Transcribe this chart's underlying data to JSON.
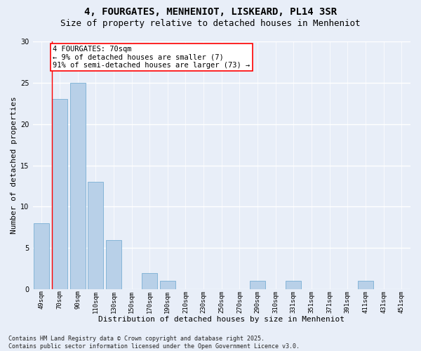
{
  "title_line1": "4, FOURGATES, MENHENIOT, LISKEARD, PL14 3SR",
  "title_line2": "Size of property relative to detached houses in Menheniot",
  "xlabel": "Distribution of detached houses by size in Menheniot",
  "ylabel": "Number of detached properties",
  "categories": [
    "49sqm",
    "70sqm",
    "90sqm",
    "110sqm",
    "130sqm",
    "150sqm",
    "170sqm",
    "190sqm",
    "210sqm",
    "230sqm",
    "250sqm",
    "270sqm",
    "290sqm",
    "310sqm",
    "331sqm",
    "351sqm",
    "371sqm",
    "391sqm",
    "411sqm",
    "431sqm",
    "451sqm"
  ],
  "values": [
    8,
    23,
    25,
    13,
    6,
    0,
    2,
    1,
    0,
    0,
    0,
    0,
    1,
    0,
    1,
    0,
    0,
    0,
    1,
    0,
    0
  ],
  "bar_color": "#b8d0e8",
  "bar_edge_color": "#7aafd4",
  "red_line_index": 1,
  "annotation_text": "4 FOURGATES: 70sqm\n← 9% of detached houses are smaller (7)\n91% of semi-detached houses are larger (73) →",
  "annotation_box_color": "white",
  "annotation_box_edge_color": "red",
  "ylim": [
    0,
    30
  ],
  "yticks": [
    0,
    5,
    10,
    15,
    20,
    25,
    30
  ],
  "footer_text": "Contains HM Land Registry data © Crown copyright and database right 2025.\nContains public sector information licensed under the Open Government Licence v3.0.",
  "bg_color": "#e8eef8",
  "grid_color": "white",
  "title_fontsize": 10,
  "subtitle_fontsize": 9,
  "axis_label_fontsize": 8,
  "tick_fontsize": 6.5,
  "annotation_fontsize": 7.5,
  "footer_fontsize": 6
}
